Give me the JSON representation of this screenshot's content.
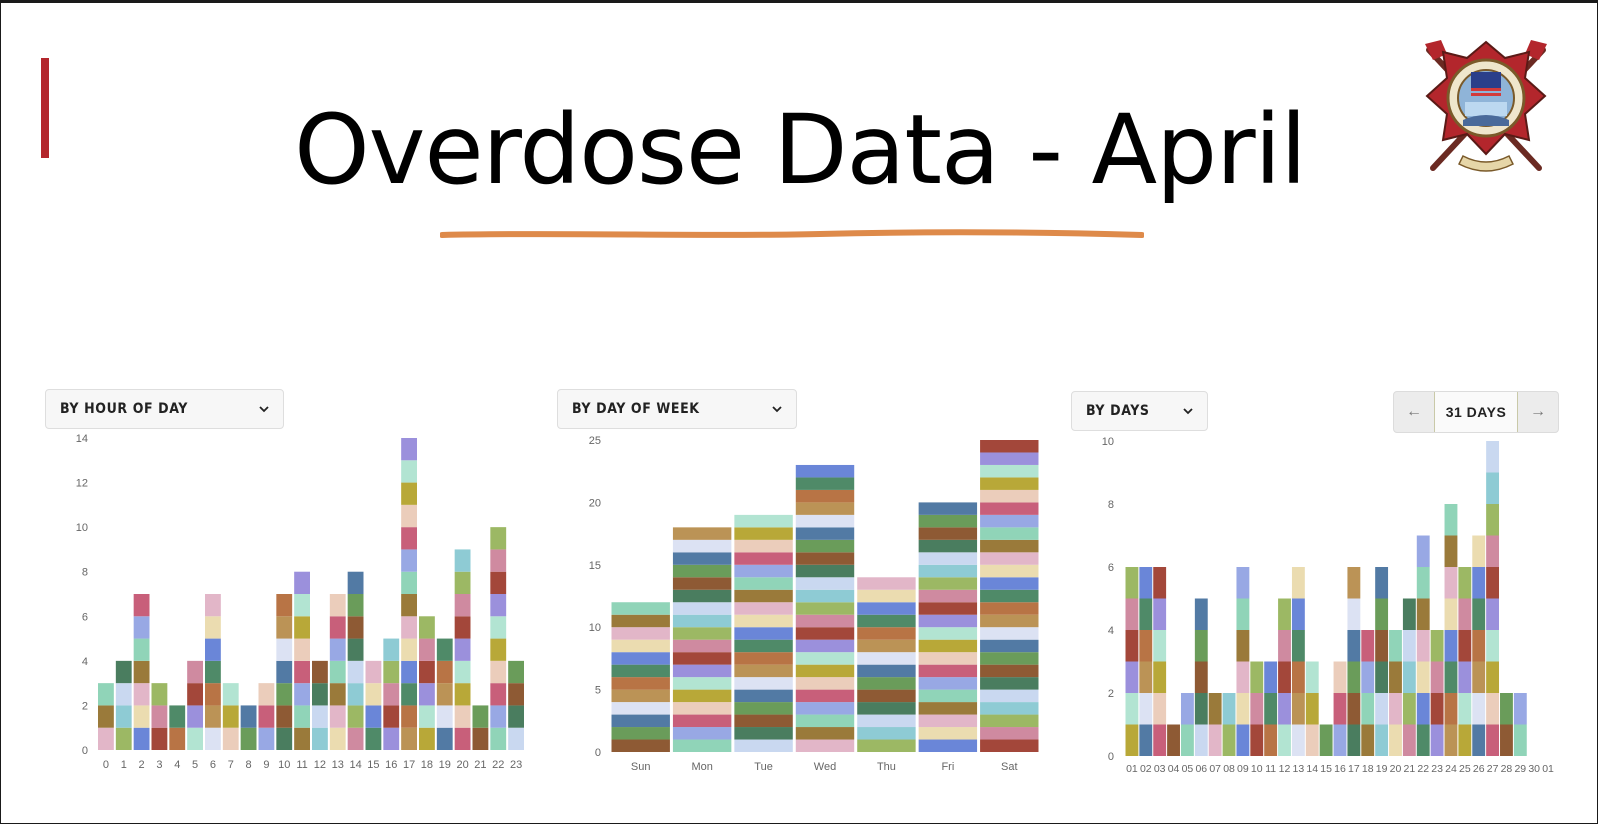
{
  "title": "Overdose Data - April",
  "palette": [
    "#e2b6c8",
    "#ebcdbb",
    "#cf8aa0",
    "#8e5a34",
    "#b87445",
    "#9a7a3a",
    "#b8a838",
    "#9cb864",
    "#6a9c5a",
    "#4f8a68",
    "#90d4b8",
    "#b2e4d2",
    "#8ecbd4",
    "#527aa4",
    "#6a86d8",
    "#98a8e4",
    "#9b90dc",
    "#c9d8f0",
    "#dce2f3",
    "#ebdcb0",
    "#c85f7a",
    "#a3473a",
    "#4a7d5f",
    "#bb9356"
  ],
  "charts": [
    {
      "dropdown_label": "BY HOUR OF DAY",
      "chart_data": {
        "type": "bar",
        "stacked": true,
        "categories": [
          "0",
          "1",
          "2",
          "3",
          "4",
          "5",
          "6",
          "7",
          "8",
          "9",
          "10",
          "11",
          "12",
          "13",
          "14",
          "15",
          "16",
          "17",
          "18",
          "19",
          "20",
          "21",
          "22",
          "23"
        ],
        "values": [
          3,
          4,
          7,
          3,
          2,
          4,
          7,
          3,
          2,
          3,
          7,
          8,
          4,
          7,
          8,
          4,
          5,
          14,
          6,
          5,
          9,
          2,
          10,
          4
        ],
        "yticks": [
          0,
          2,
          4,
          6,
          8,
          10,
          12,
          14
        ],
        "ylim": [
          0,
          14
        ],
        "grid": false
      }
    },
    {
      "dropdown_label": "BY DAY OF WEEK",
      "chart_data": {
        "type": "bar",
        "stacked": true,
        "categories": [
          "Sun",
          "Mon",
          "Tue",
          "Wed",
          "Thu",
          "Fri",
          "Sat"
        ],
        "values": [
          12,
          18,
          19,
          23,
          14,
          20,
          25
        ],
        "yticks": [
          0,
          5,
          10,
          15,
          20,
          25
        ],
        "ylim": [
          0,
          25
        ],
        "grid": false
      }
    },
    {
      "dropdown_label": "BY DAYS",
      "range_label": "31 DAYS",
      "chart_data": {
        "type": "bar",
        "stacked": true,
        "categories": [
          "01",
          "02",
          "03",
          "04",
          "05",
          "06",
          "07",
          "08",
          "09",
          "10",
          "11",
          "12",
          "13",
          "14",
          "15",
          "16",
          "17",
          "18",
          "19",
          "20",
          "21",
          "22",
          "23",
          "24",
          "25",
          "26",
          "27",
          "28",
          "29",
          "30",
          "01"
        ],
        "values": [
          6,
          6,
          6,
          1,
          2,
          5,
          2,
          2,
          6,
          3,
          3,
          5,
          6,
          3,
          1,
          3,
          6,
          4,
          6,
          4,
          5,
          7,
          4,
          8,
          6,
          7,
          10,
          2,
          2,
          0,
          0
        ],
        "yticks": [
          0,
          2,
          4,
          6,
          8,
          10
        ],
        "ylim": [
          0,
          10
        ],
        "grid": false
      }
    }
  ]
}
